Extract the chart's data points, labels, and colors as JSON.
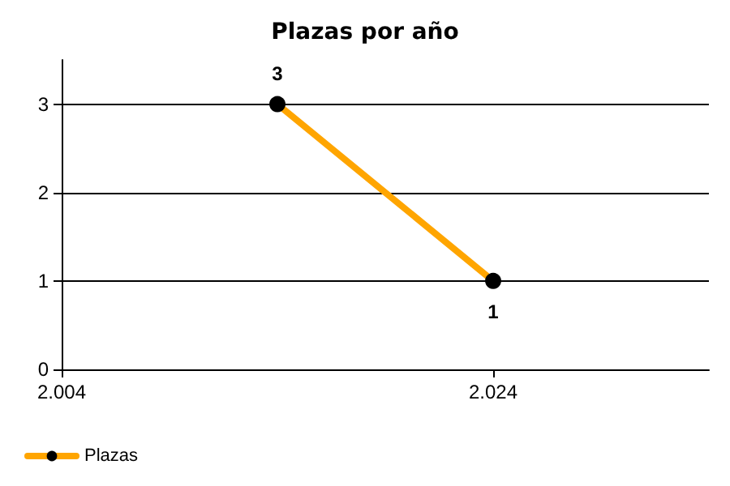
{
  "chart_data": {
    "type": "line",
    "title": "Plazas por año",
    "x": [
      2014,
      2024
    ],
    "series": [
      {
        "name": "Plazas",
        "color": "#ffa500",
        "values": [
          3,
          1
        ]
      }
    ],
    "xlim": [
      2004,
      2034
    ],
    "xticks": [
      {
        "value": 2004,
        "label": "2.004"
      },
      {
        "value": 2024,
        "label": "2.024"
      }
    ],
    "ylim": [
      0,
      3.5
    ],
    "yticks": [
      0,
      1,
      2,
      3
    ],
    "grid": "y",
    "legend": "bottom left",
    "marker": "circle",
    "line_style": "solid",
    "data_labels": true
  }
}
